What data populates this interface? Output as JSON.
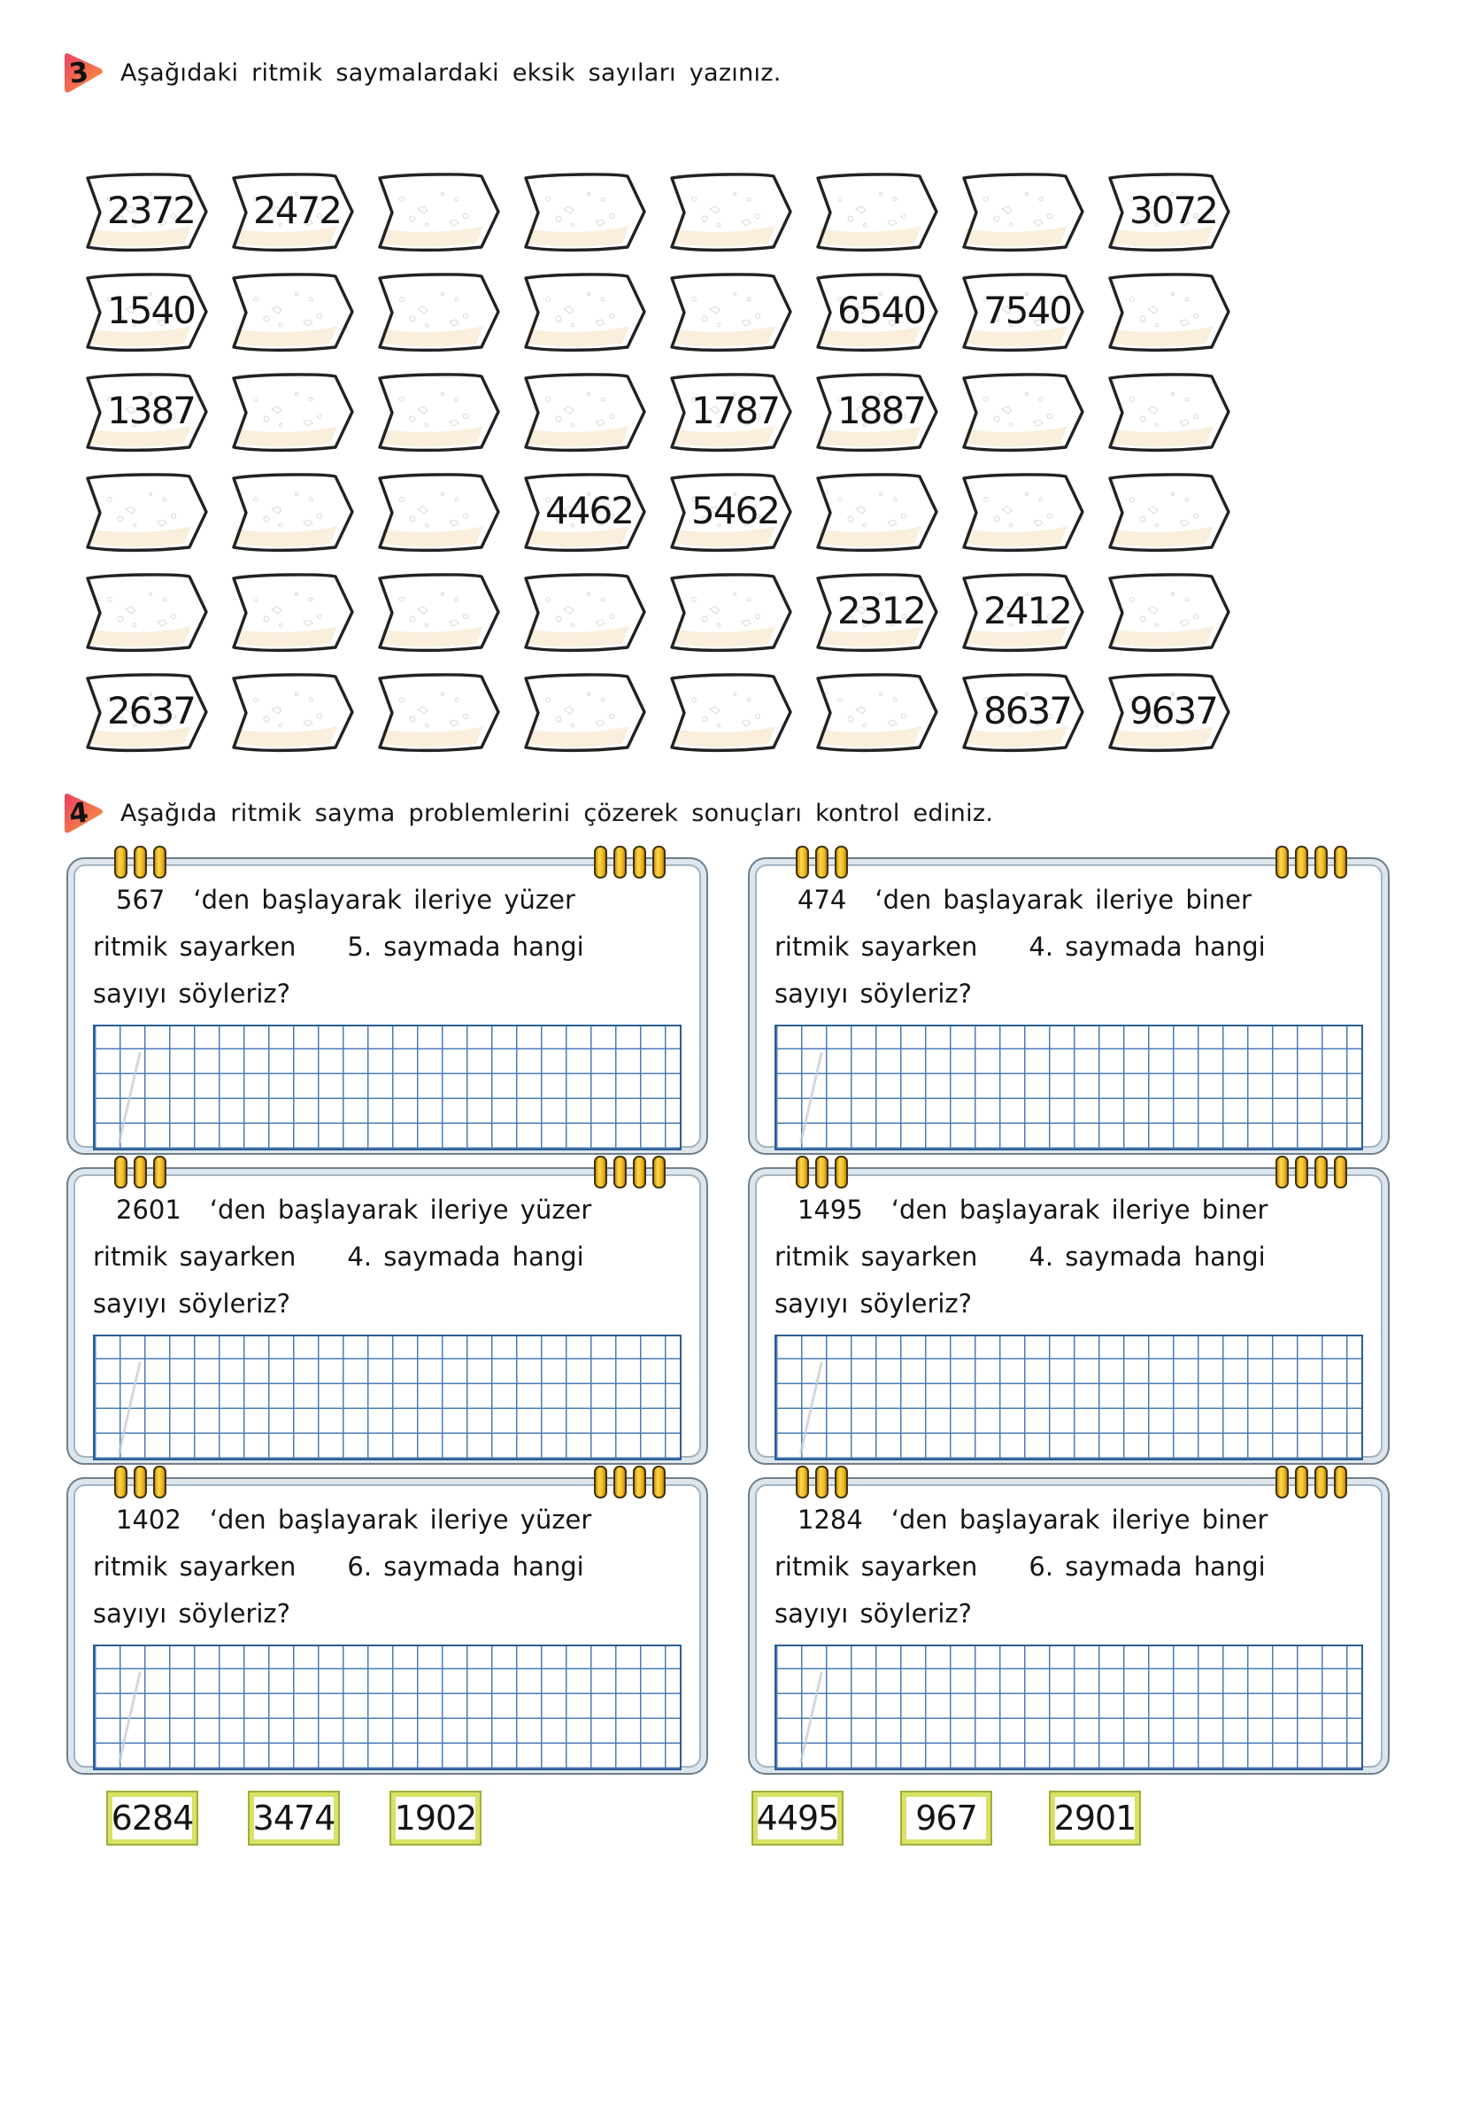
{
  "exercise3": {
    "badge": "3",
    "title": "Aşağıdaki ritmik saymalardaki eksik sayıları yazınız.",
    "rows": [
      {
        "cells": [
          "2372",
          "2472",
          "",
          "",
          "",
          "",
          "",
          "3072"
        ]
      },
      {
        "cells": [
          "1540",
          "",
          "",
          "",
          "",
          "6540",
          "7540",
          ""
        ]
      },
      {
        "cells": [
          "1387",
          "",
          "",
          "",
          "1787",
          "1887",
          "",
          ""
        ]
      },
      {
        "cells": [
          "",
          "",
          "",
          "4462",
          "5462",
          "",
          "",
          ""
        ]
      },
      {
        "cells": [
          "",
          "",
          "",
          "",
          "",
          "2312",
          "2412",
          ""
        ]
      },
      {
        "cells": [
          "2637",
          "",
          "",
          "",
          "",
          "",
          "8637",
          "9637"
        ]
      }
    ]
  },
  "exercise4": {
    "badge": "4",
    "title": "Aşağıda ritmik sayma problemlerini çözerek sonuçları kontrol ediniz.",
    "problems": [
      {
        "number": "567",
        "suffix": "‘den başlayarak ileriye yüzer",
        "line2a": "ritmik sayarken",
        "line2b": "5. saymada hangi",
        "line3": "sayıyı söyleriz?"
      },
      {
        "number": "474",
        "suffix": "‘den başlayarak ileriye biner",
        "line2a": "ritmik sayarken",
        "line2b": "4. saymada hangi",
        "line3": "sayıyı söyleriz?"
      },
      {
        "number": "2601",
        "suffix": "‘den başlayarak ileriye yüzer",
        "line2a": "ritmik sayarken",
        "line2b": "4. saymada hangi",
        "line3": "sayıyı söyleriz?"
      },
      {
        "number": "1495",
        "suffix": "‘den başlayarak ileriye biner",
        "line2a": "ritmik sayarken",
        "line2b": "4. saymada hangi",
        "line3": "sayıyı söyleriz?"
      },
      {
        "number": "1402",
        "suffix": "‘den başlayarak ileriye yüzer",
        "line2a": "ritmik sayarken",
        "line2b": "6. saymada hangi",
        "line3": "sayıyı söyleriz?"
      },
      {
        "number": "1284",
        "suffix": "‘den başlayarak ileriye biner",
        "line2a": "ritmik sayarken",
        "line2b": "6. saymada hangi",
        "line3": "sayıyı söyleriz?"
      }
    ],
    "answers_left": [
      "6284",
      "3474",
      "1902"
    ],
    "answers_right": [
      "4495",
      "967",
      "2901"
    ]
  },
  "colors": {
    "badge_gradient_start": "#ee3f63",
    "badge_gradient_end": "#f79a3d",
    "arrow_outline": "#222222",
    "arrow_cream": "#faeedd",
    "card_frame": "#6f7e8a",
    "clip_yellow": "#f2b71d",
    "grid_blue": "#4a7cb5",
    "answer_green": "#d7e266"
  }
}
